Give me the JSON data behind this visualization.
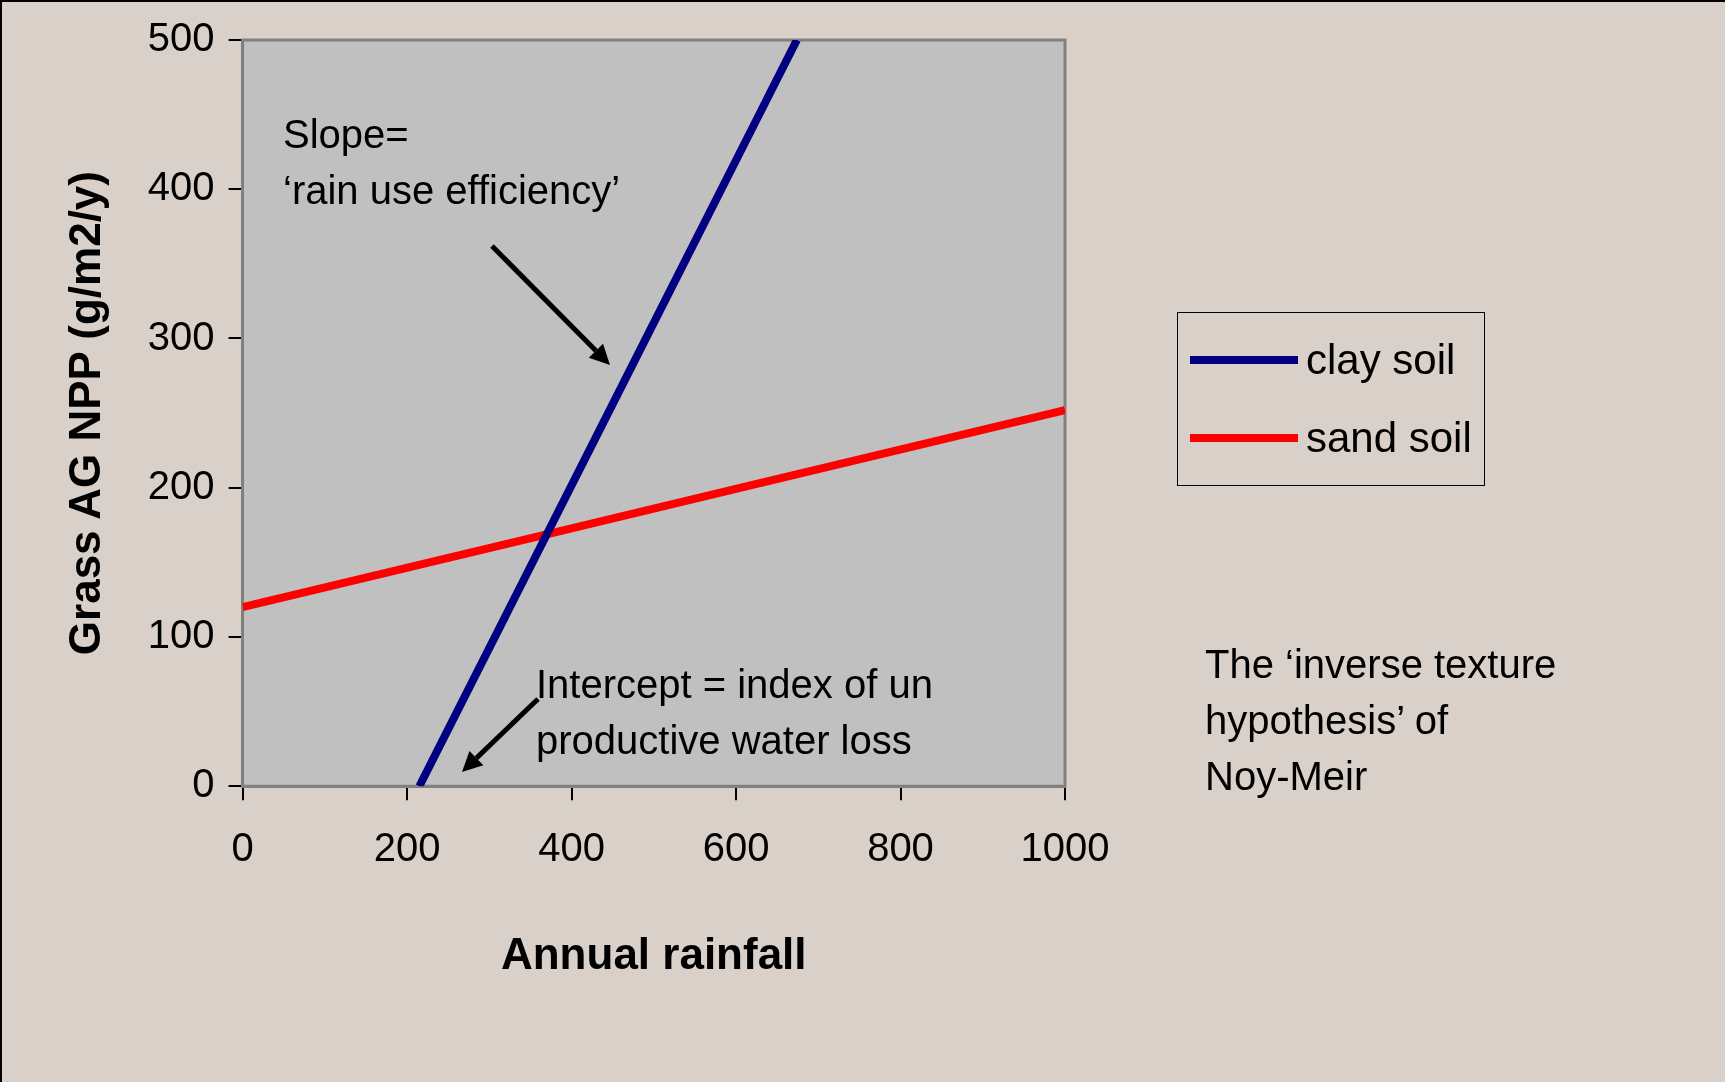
{
  "chart_data": {
    "type": "line",
    "xlabel": "Annual rainfall",
    "ylabel": "Grass AG NPP (g/m2/y)",
    "xlim": [
      0,
      1000
    ],
    "xticks": [
      0,
      200,
      400,
      600,
      800,
      1000
    ],
    "ylim": [
      0,
      500
    ],
    "yticks": [
      0,
      100,
      200,
      300,
      400,
      500
    ],
    "series": [
      {
        "name": "clay soil",
        "color": "#000080",
        "x": [
          215,
          674
        ],
        "values": [
          0,
          500
        ]
      },
      {
        "name": "sand soil",
        "color": "#ff0000",
        "x": [
          0,
          1000
        ],
        "values": [
          120,
          252
        ]
      }
    ],
    "legend": "right",
    "grid": false,
    "marker": "none",
    "line_style": "solid",
    "annotations": [
      "Slope=\n‘rain use efficiency’",
      "Intercept = index of un\nproductive water loss",
      "The ‘inverse texture\nhypothesis’ of\nNoy-Meir"
    ]
  }
}
